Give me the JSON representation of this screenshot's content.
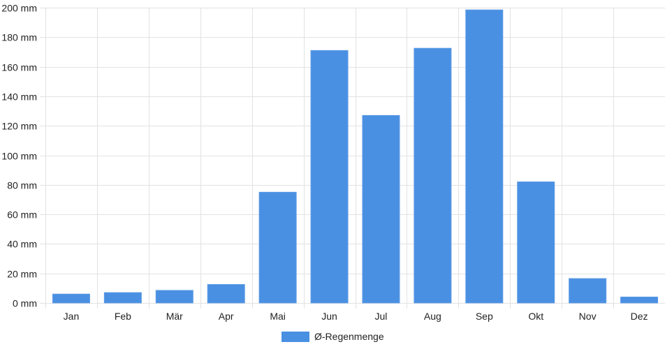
{
  "chart_data": {
    "type": "bar",
    "categories": [
      "Jan",
      "Feb",
      "Mär",
      "Apr",
      "Mai",
      "Jun",
      "Jul",
      "Aug",
      "Sep",
      "Okt",
      "Nov",
      "Dez"
    ],
    "series": [
      {
        "name": "Ø-Regenmenge",
        "values": [
          6,
          7,
          8.5,
          12.5,
          75,
          171,
          127,
          172.5,
          198.5,
          82,
          16.5,
          4
        ],
        "color": "#4a90e2"
      }
    ],
    "yticks": [
      0,
      20,
      40,
      60,
      80,
      100,
      120,
      140,
      160,
      180,
      200
    ],
    "y_tick_suffix": " mm",
    "ylim": [
      0,
      200
    ],
    "grid": true,
    "legend": "bottom-center",
    "title": "",
    "xlabel": "",
    "ylabel": ""
  }
}
